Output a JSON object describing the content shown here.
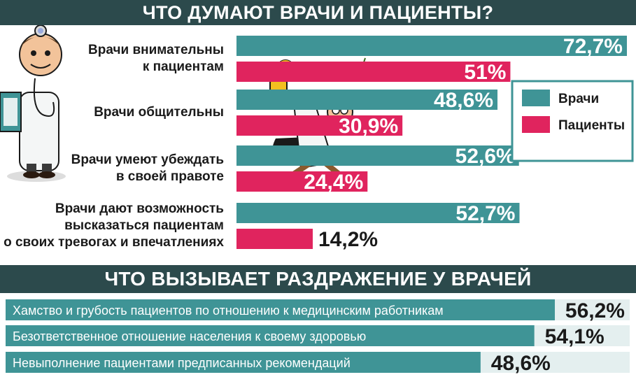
{
  "colors": {
    "header_bg": "#2c4a4c",
    "doctors": "#3f9496",
    "patients": "#e0245e",
    "text_dark": "#1a1a1a",
    "panel_bg": "#e4efef"
  },
  "illustrations": [
    "doctor-cartoon",
    "falling-doctor-cartoon",
    "child-cartoon",
    "apple-icon"
  ],
  "chart_data": [
    {
      "type": "bar",
      "orientation": "horizontal",
      "title": "ЧТО ДУМАЮТ ВРАЧИ И ПАЦИЕНТЫ?",
      "categories": [
        [
          "Врачи внимательны",
          "к пациентам"
        ],
        [
          "Врачи общительны"
        ],
        [
          "Врачи умеют убеждать",
          "в своей правоте"
        ],
        [
          "Врачи дают возможность",
          "высказаться пациентам",
          "о своих тревогах и впечатлениях"
        ]
      ],
      "series": [
        {
          "name": "Врачи",
          "values": [
            72.7,
            48.6,
            52.6,
            52.7
          ],
          "labels": [
            "72,7%",
            "48,6%",
            "52,6%",
            "52,7%"
          ]
        },
        {
          "name": "Пациенты",
          "values": [
            51,
            30.9,
            24.4,
            14.2
          ],
          "labels": [
            "51%",
            "30,9%",
            "24,4%",
            "14,2%"
          ]
        }
      ],
      "xlim": [
        0,
        72.7
      ],
      "legend": "right"
    },
    {
      "type": "bar",
      "orientation": "horizontal",
      "title": "ЧТО ВЫЗЫВАЕТ РАЗДРАЖЕНИЕ У ВРАЧЕЙ",
      "categories": [
        "Хамство и грубость пациентов по отношению к медицинским работникам",
        "Безответственное отношение населения к своему здоровью",
        "Невыполнение пациентами предписанных рекомендаций"
      ],
      "values": [
        56.2,
        54.1,
        48.6
      ],
      "labels": [
        "56,2%",
        "54,1%",
        "48,6%"
      ]
    }
  ]
}
